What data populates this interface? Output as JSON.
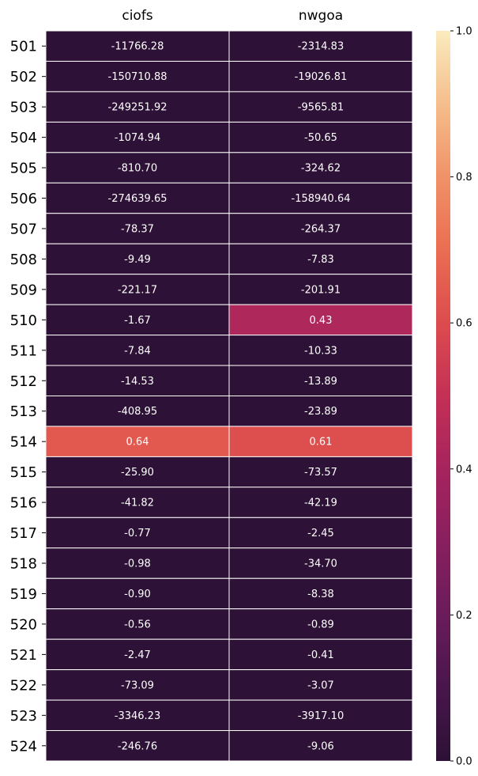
{
  "chart_data": {
    "type": "heatmap",
    "title": "",
    "xlabel": "",
    "ylabel": "",
    "columns": [
      "ciofs",
      "nwgoa"
    ],
    "rows": [
      "501",
      "502",
      "503",
      "504",
      "505",
      "506",
      "507",
      "508",
      "509",
      "510",
      "511",
      "512",
      "513",
      "514",
      "515",
      "516",
      "517",
      "518",
      "519",
      "520",
      "521",
      "522",
      "523",
      "524"
    ],
    "values": [
      [
        -11766.28,
        -2314.83
      ],
      [
        -150710.88,
        -19026.81
      ],
      [
        -249251.92,
        -9565.81
      ],
      [
        -1074.94,
        -50.65
      ],
      [
        -810.7,
        -324.62
      ],
      [
        -274639.65,
        -158940.64
      ],
      [
        -78.37,
        -264.37
      ],
      [
        -9.49,
        -7.83
      ],
      [
        -221.17,
        -201.91
      ],
      [
        -1.67,
        0.43
      ],
      [
        -7.84,
        -10.33
      ],
      [
        -14.53,
        -13.89
      ],
      [
        -408.95,
        -23.89
      ],
      [
        0.64,
        0.61
      ],
      [
        -25.9,
        -73.57
      ],
      [
        -41.82,
        -42.19
      ],
      [
        -0.77,
        -2.45
      ],
      [
        -0.98,
        -34.7
      ],
      [
        -0.9,
        -8.38
      ],
      [
        -0.56,
        -0.89
      ],
      [
        -2.47,
        -0.41
      ],
      [
        -73.09,
        -3.07
      ],
      [
        -3346.23,
        -3917.1
      ],
      [
        -246.76,
        -9.06
      ]
    ],
    "labels": [
      [
        "-11766.28",
        "-2314.83"
      ],
      [
        "-150710.88",
        "-19026.81"
      ],
      [
        "-249251.92",
        "-9565.81"
      ],
      [
        "-1074.94",
        "-50.65"
      ],
      [
        "-810.70",
        "-324.62"
      ],
      [
        "-274639.65",
        "-158940.64"
      ],
      [
        "-78.37",
        "-264.37"
      ],
      [
        "-9.49",
        "-7.83"
      ],
      [
        "-221.17",
        "-201.91"
      ],
      [
        "-1.67",
        "0.43"
      ],
      [
        "-7.84",
        "-10.33"
      ],
      [
        "-14.53",
        "-13.89"
      ],
      [
        "-408.95",
        "-23.89"
      ],
      [
        "0.64",
        "0.61"
      ],
      [
        "-25.90",
        "-73.57"
      ],
      [
        "-41.82",
        "-42.19"
      ],
      [
        "-0.77",
        "-2.45"
      ],
      [
        "-0.98",
        "-34.70"
      ],
      [
        "-0.90",
        "-8.38"
      ],
      [
        "-0.56",
        "-0.89"
      ],
      [
        "-2.47",
        "-0.41"
      ],
      [
        "-73.09",
        "-3.07"
      ],
      [
        "-3346.23",
        "-3917.10"
      ],
      [
        "-246.76",
        "-9.06"
      ]
    ],
    "colorbar": {
      "colormap": "flare-reversed",
      "range": [
        0.0,
        1.0
      ],
      "ticks": [
        "0.0",
        "0.2",
        "0.4",
        "0.6",
        "0.8",
        "1.0"
      ]
    },
    "x_axis_position": "top",
    "grid": false,
    "legend": "none"
  }
}
